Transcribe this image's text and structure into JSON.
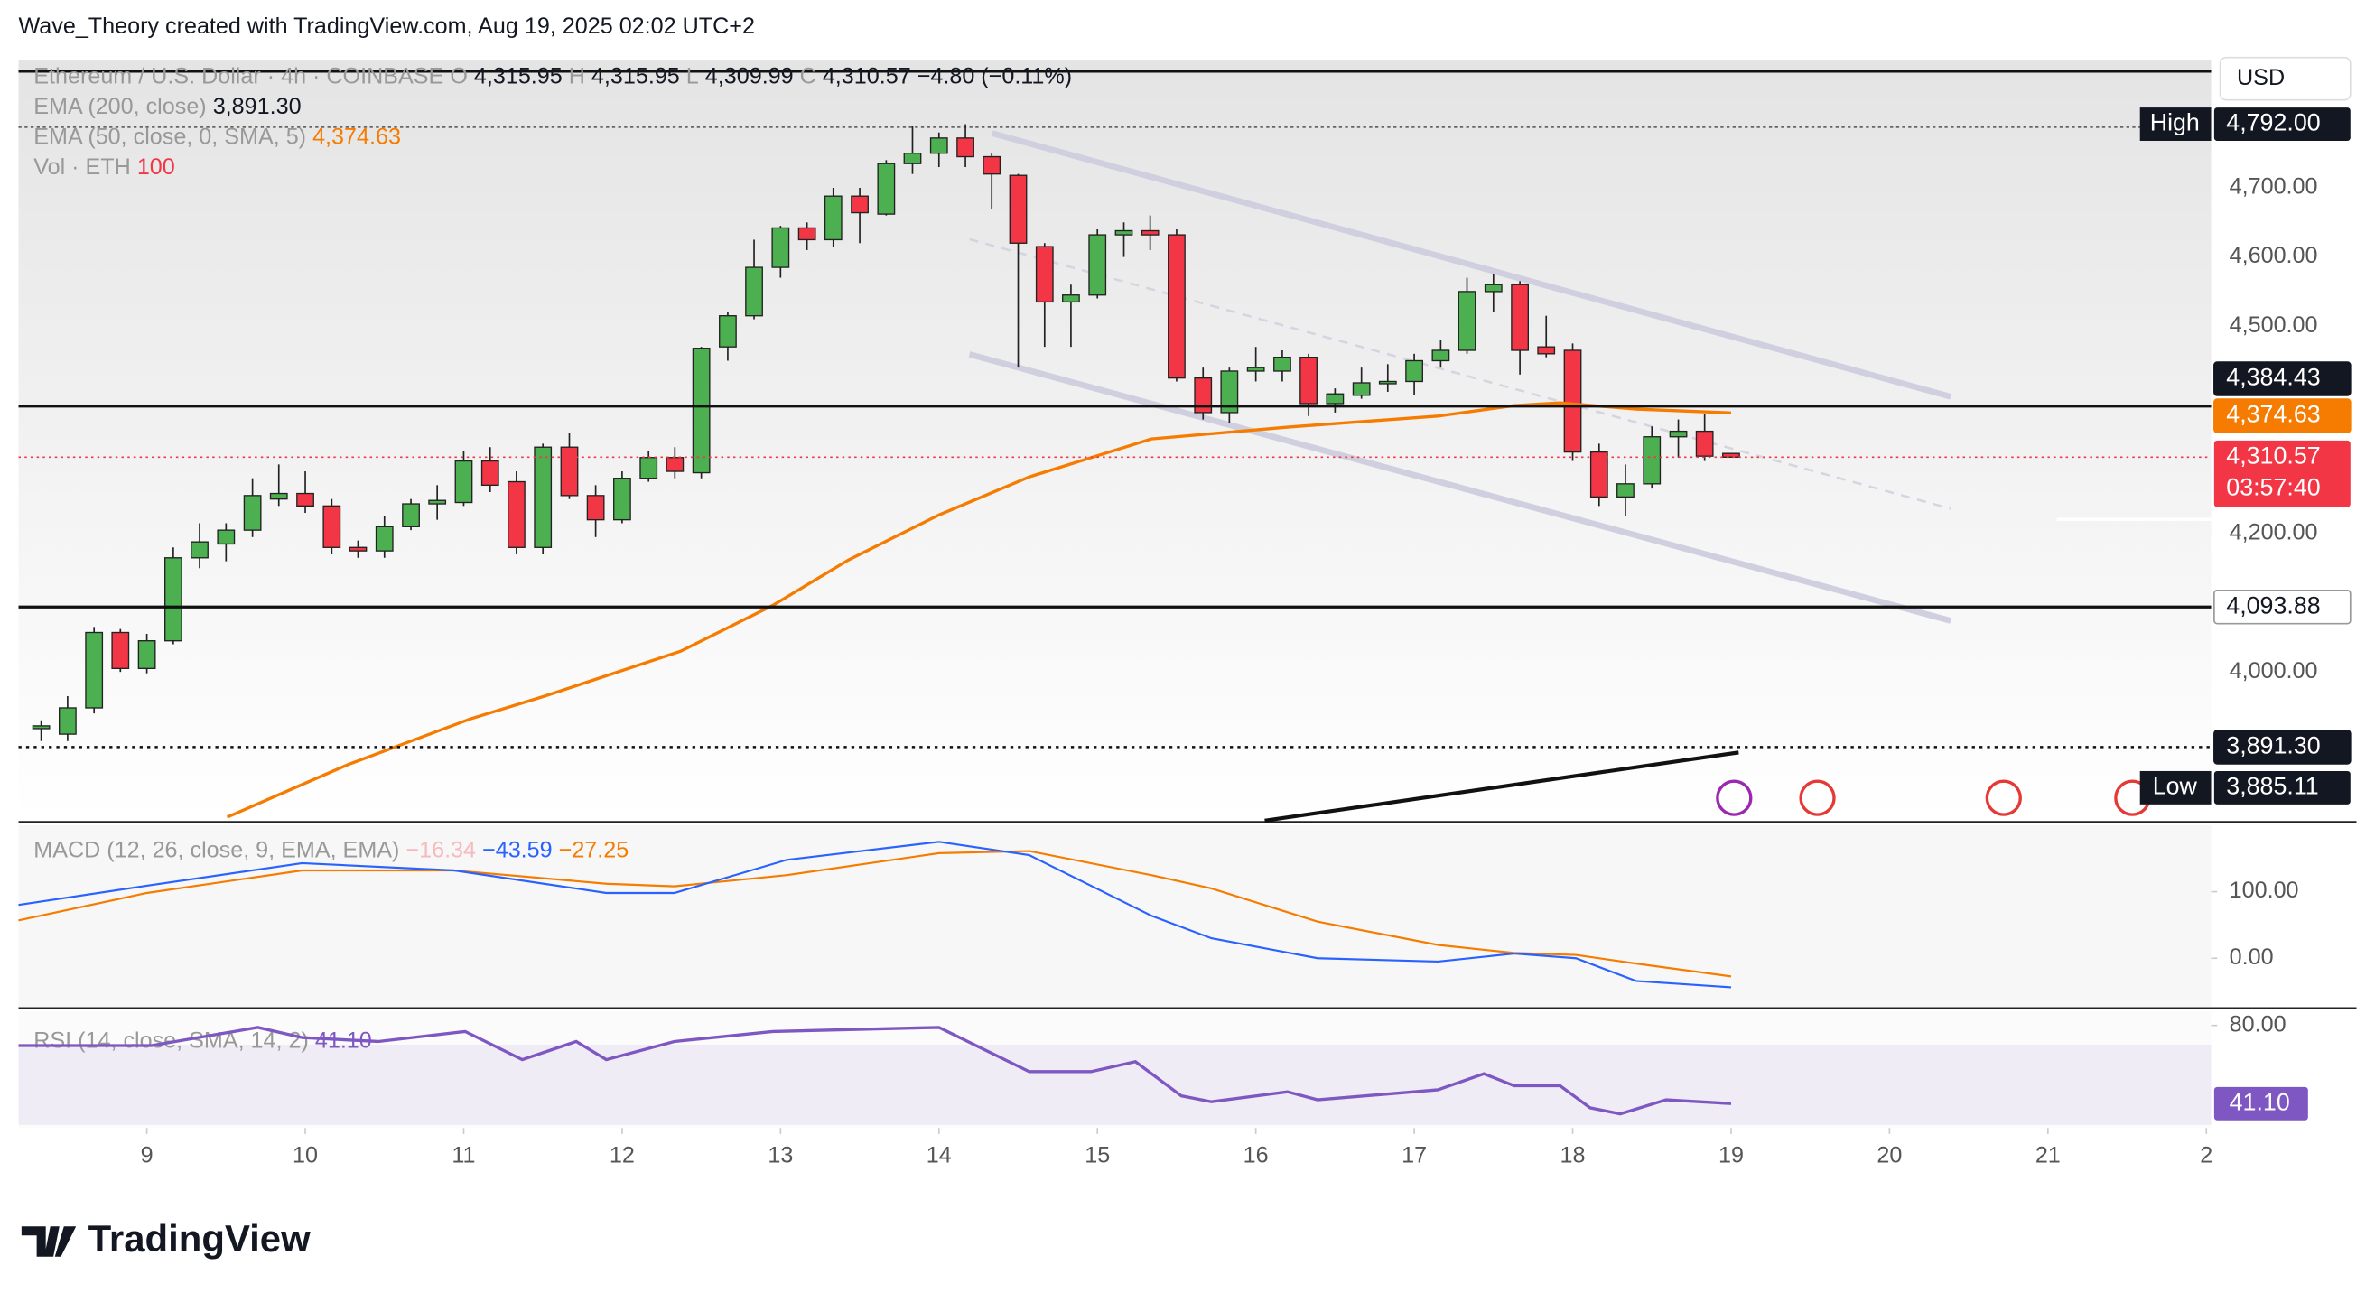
{
  "header": {
    "credit": "Wave_Theory created with TradingView.com, Aug 19, 2025 02:02 UTC+2"
  },
  "footer": {
    "logo": "TradingView"
  },
  "chart_data": {
    "type": "candlestick",
    "title": "Ethereum / U.S. Dollar · 4h · COINBASE",
    "currency": "USD",
    "quote": [
      {
        "key": "O",
        "text": "4,315.95"
      },
      {
        "key": "H",
        "text": "4,315.95"
      },
      {
        "key": "L",
        "text": "4,309.99"
      },
      {
        "key": "C",
        "text": "4,310.57"
      }
    ],
    "change": "−4.80 (−0.11%)",
    "up_color": "#4caf50",
    "down_color": "#f23645",
    "x": [
      8.333,
      8.5,
      8.667,
      8.833,
      9,
      9.167,
      9.333,
      9.5,
      9.667,
      9.833,
      10,
      10.167,
      10.333,
      10.5,
      10.667,
      10.833,
      11,
      11.167,
      11.333,
      11.5,
      11.667,
      11.833,
      12,
      12.167,
      12.333,
      12.5,
      12.667,
      12.833,
      13,
      13.167,
      13.333,
      13.5,
      13.667,
      13.833,
      14,
      14.167,
      14.333,
      14.5,
      14.667,
      14.833,
      15,
      15.167,
      15.333,
      15.5,
      15.667,
      15.833,
      16,
      16.167,
      16.333,
      16.5,
      16.667,
      16.833,
      17,
      17.167,
      17.333,
      17.5,
      17.667,
      17.833,
      18,
      18.167,
      18.333,
      18.5,
      18.667,
      18.833,
      19
    ],
    "open": [
      3918,
      3910,
      3948,
      4057,
      4005,
      4045,
      4165,
      4185,
      4205,
      4250,
      4258,
      4240,
      4180,
      4175,
      4210,
      4243,
      4245,
      4305,
      4275,
      4180,
      4325,
      4255,
      4220,
      4280,
      4310,
      4288,
      4470,
      4515,
      4585,
      4642,
      4625,
      4688,
      4662,
      4735,
      4750,
      4772,
      4745,
      4718,
      4615,
      4535,
      4545,
      4632,
      4638,
      4632,
      4425,
      4375,
      4435,
      4435,
      4455,
      4388,
      4400,
      4418,
      4420,
      4450,
      4465,
      4550,
      4560,
      4470,
      4465,
      4318,
      4253,
      4272,
      4340,
      4348,
      4315.95
    ],
    "high": [
      3930,
      3965,
      4065,
      4062,
      4055,
      4180,
      4215,
      4215,
      4280,
      4300,
      4290,
      4250,
      4190,
      4225,
      4250,
      4270,
      4320,
      4325,
      4290,
      4330,
      4345,
      4270,
      4290,
      4320,
      4325,
      4470,
      4520,
      4625,
      4645,
      4650,
      4700,
      4700,
      4740,
      4790,
      4780,
      4792,
      4750,
      4720,
      4620,
      4560,
      4640,
      4650,
      4660,
      4640,
      4440,
      4440,
      4470,
      4465,
      4460,
      4410,
      4440,
      4445,
      4460,
      4480,
      4570,
      4575,
      4565,
      4515,
      4475,
      4330,
      4300,
      4355,
      4365,
      4373,
      4315.95
    ],
    "low": [
      3900,
      3900,
      3940,
      4000,
      3998,
      4040,
      4150,
      4160,
      4195,
      4240,
      4230,
      4170,
      4165,
      4165,
      4205,
      4220,
      4240,
      4260,
      4170,
      4170,
      4250,
      4195,
      4215,
      4275,
      4280,
      4280,
      4450,
      4510,
      4570,
      4610,
      4615,
      4620,
      4660,
      4720,
      4730,
      4730,
      4670,
      4440,
      4470,
      4470,
      4540,
      4600,
      4610,
      4420,
      4365,
      4360,
      4420,
      4420,
      4370,
      4375,
      4395,
      4405,
      4400,
      4440,
      4460,
      4520,
      4430,
      4455,
      4305,
      4240,
      4225,
      4265,
      4310,
      4305,
      4309.99
    ],
    "close": [
      3922,
      3948,
      4057,
      4005,
      4045,
      4165,
      4188,
      4205,
      4255,
      4258,
      4240,
      4180,
      4175,
      4210,
      4243,
      4248,
      4305,
      4270,
      4180,
      4325,
      4255,
      4220,
      4280,
      4310,
      4290,
      4468,
      4515,
      4585,
      4642,
      4625,
      4688,
      4664,
      4735,
      4750,
      4772,
      4745,
      4720,
      4620,
      4535,
      4545,
      4632,
      4638,
      4632,
      4425,
      4375,
      4435,
      4440,
      4455,
      4388,
      4402,
      4418,
      4420,
      4450,
      4465,
      4550,
      4560,
      4465,
      4460,
      4318,
      4253,
      4272,
      4340,
      4348,
      4312,
      4310.57
    ],
    "ylim": [
      3785,
      4884
    ],
    "yticks": [
      {
        "value": 4000,
        "label": "4,000.00"
      },
      {
        "value": 4200,
        "label": "4,200.00"
      },
      {
        "value": 4500,
        "label": "4,500.00"
      },
      {
        "value": 4600,
        "label": "4,600.00"
      },
      {
        "value": 4700,
        "label": "4,700.00"
      }
    ],
    "xlim": [
      8.19,
      22.03
    ],
    "xticks": [
      9,
      10,
      11,
      12,
      13,
      14,
      15,
      16,
      17,
      18,
      19,
      20,
      21,
      {
        "value": 22,
        "label": "2"
      }
    ],
    "grid": false,
    "ema200": {
      "label": "EMA (200, close)",
      "value": 3891.3,
      "value_label": "3,891.30",
      "color": "#131722"
    },
    "ema50": {
      "label": "EMA (50, close, 0, SMA, 5)",
      "value_label": "4,374.63",
      "color": "#f57c00",
      "x": [
        9.507,
        10.27,
        11.04,
        11.51,
        12.37,
        12.95,
        13.43,
        14.0,
        14.57,
        15.34,
        16.2,
        17.15,
        17.63,
        17.92,
        18.4,
        19.0
      ],
      "values": [
        3790,
        3866,
        3932,
        3965,
        4030,
        4096,
        4162,
        4227,
        4282,
        4337,
        4354,
        4370,
        4385,
        4389,
        4380,
        4374.63
      ]
    },
    "volume": {
      "label": "Vol · ETH",
      "value_label": "100"
    },
    "levels": [
      {
        "value": 4384.43,
        "label": "4,384.43"
      },
      {
        "value": 4093.88,
        "label": "4,093.88"
      }
    ],
    "high_marker": {
      "name": "High",
      "value": 4792,
      "label": "4,792.00"
    },
    "low_marker": {
      "name": "Low",
      "value": 3885.11,
      "label": "3,885.11"
    },
    "last_price": {
      "value": 4310.57,
      "label": "4,310.57",
      "countdown": "03:57:40"
    },
    "macd": {
      "title": "MACD (12, 26, close, 9, EMA, EMA)",
      "hist_label": "−16.34",
      "macd_label": "−43.59",
      "signal_label": "−27.25",
      "macd_color": "#2962ff",
      "signal_color": "#f57c00",
      "ylim": [
        -73,
        200
      ],
      "yticks": [
        {
          "value": 0,
          "label": "0.00"
        },
        {
          "value": 100,
          "label": "100.00"
        }
      ],
      "x": [
        8.19,
        9,
        9.98,
        10.94,
        11.9,
        12.33,
        13.04,
        14.0,
        14.57,
        15.34,
        15.72,
        16.39,
        17.15,
        17.63,
        18.02,
        18.4,
        19.0
      ],
      "macd_values": [
        80,
        109,
        143,
        132,
        98,
        98,
        148,
        175,
        155,
        64,
        30,
        0,
        -5,
        7,
        0,
        -34,
        -43.59
      ],
      "signal_values": [
        57,
        98,
        132,
        132,
        112,
        108,
        125,
        158,
        161,
        125,
        105,
        55,
        20,
        8,
        5,
        -8,
        -27.25
      ]
    },
    "rsi": {
      "title": "RSI (14, close, SMA, 14, 2)",
      "value_label": "41.10",
      "color": "#7e57c2",
      "ylim": [
        29,
        87
      ],
      "yticks": [
        {
          "value": 80,
          "label": "80.00"
        }
      ],
      "x": [
        8.19,
        9.03,
        9.7,
        9.98,
        10.46,
        11.01,
        11.37,
        11.71,
        11.9,
        12.33,
        12.95,
        14.0,
        14.57,
        14.96,
        15.24,
        15.53,
        15.72,
        16.2,
        16.39,
        17.15,
        17.44,
        17.63,
        17.92,
        18.11,
        18.3,
        18.59,
        19.0
      ],
      "values": [
        70,
        70,
        79,
        74,
        72,
        77,
        63,
        72,
        63,
        72,
        77,
        79,
        57,
        57,
        62,
        45,
        42,
        47,
        43,
        48,
        56,
        50,
        50,
        39,
        36,
        43,
        41.1
      ]
    }
  }
}
